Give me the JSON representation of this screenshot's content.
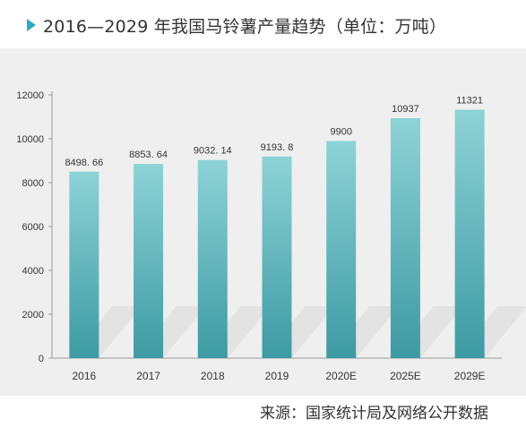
{
  "header": {
    "title": "2016—2029 年我国马铃薯产量趋势（单位：万吨）"
  },
  "footer": {
    "source": "来源：国家统计局及网络公开数据"
  },
  "colors": {
    "accent": "#2fa9c3",
    "bar_top": "#8dd3d6",
    "bar_bottom": "#3d9aa3",
    "panel": "#efefef",
    "shadow": "#d9d9d9"
  },
  "chart_data": {
    "type": "bar",
    "categories": [
      "2016",
      "2017",
      "2018",
      "2019",
      "2020E",
      "2025E",
      "2029E"
    ],
    "values": [
      8498.66,
      8853.64,
      9032.14,
      9193.8,
      9900,
      10937,
      11321
    ],
    "value_labels": [
      "8498. 66",
      "8853. 64",
      "9032. 14",
      "9193. 8",
      "9900",
      "10937",
      "11321"
    ],
    "title": "2016—2029 年我国马铃薯产量趋势（单位：万吨）",
    "xlabel": "",
    "ylabel": "",
    "ylim": [
      0,
      12000
    ],
    "yticks": [
      0,
      2000,
      4000,
      6000,
      8000,
      10000,
      12000
    ],
    "grid": false,
    "legend": "none"
  }
}
